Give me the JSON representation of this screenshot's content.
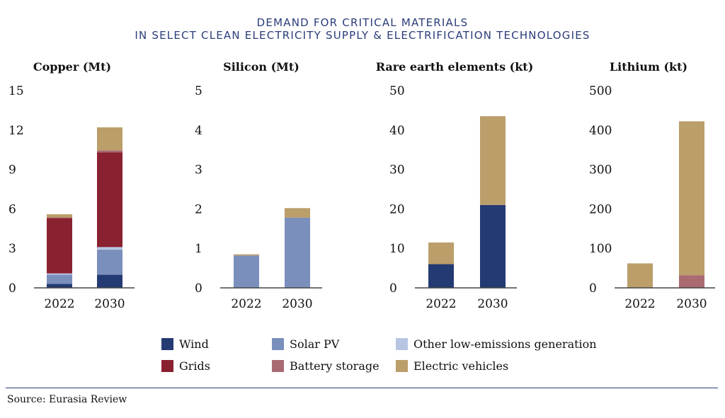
{
  "title": {
    "line1": "DEMAND FOR CRITICAL MATERIALS",
    "line2": "IN SELECT CLEAN ELECTRICITY SUPPLY & ELECTRIFICATION TECHNOLOGIES"
  },
  "colors": {
    "Wind": "#243a73",
    "Solar PV": "#7a8fbc",
    "Other low-emissions generation": "#b8c5e2",
    "Grids": "#8a2131",
    "Battery storage": "#a96a72",
    "Electric vehicles": "#bb9e6a"
  },
  "legend": [
    {
      "label": "Wind",
      "color": "#243a73"
    },
    {
      "label": "Grids",
      "color": "#8a2131"
    },
    {
      "label": "Solar PV",
      "color": "#7a8fbc"
    },
    {
      "label": "Battery storage",
      "color": "#a96a72"
    },
    {
      "label": "Other low-emissions generation",
      "color": "#b8c5e2"
    },
    {
      "label": "Electric vehicles",
      "color": "#bb9e6a"
    }
  ],
  "source": "Source: Eurasia Review",
  "chart_data": [
    {
      "type": "bar",
      "stacked": true,
      "title": "Copper (Mt)",
      "categories": [
        "2022",
        "2030"
      ],
      "ylim": [
        0,
        15
      ],
      "yticks": [
        "0",
        "3",
        "6",
        "9",
        "12",
        "15"
      ],
      "series": [
        {
          "name": "Wind",
          "values": [
            0.3,
            1.0
          ]
        },
        {
          "name": "Solar PV",
          "values": [
            0.7,
            1.9
          ]
        },
        {
          "name": "Other low-emissions generation",
          "values": [
            0.1,
            0.2
          ]
        },
        {
          "name": "Grids",
          "values": [
            4.2,
            7.2
          ]
        },
        {
          "name": "Battery storage",
          "values": [
            0.05,
            0.15
          ]
        },
        {
          "name": "Electric vehicles",
          "values": [
            0.25,
            1.75
          ]
        }
      ]
    },
    {
      "type": "bar",
      "stacked": true,
      "title": "Silicon (Mt)",
      "categories": [
        "2022",
        "2030"
      ],
      "ylim": [
        0,
        5
      ],
      "yticks": [
        "0",
        "1",
        "2",
        "3",
        "4",
        "5"
      ],
      "series": [
        {
          "name": "Solar PV",
          "values": [
            0.82,
            1.78
          ]
        },
        {
          "name": "Electric vehicles",
          "values": [
            0.03,
            0.24
          ]
        }
      ]
    },
    {
      "type": "bar",
      "stacked": true,
      "title": "Rare earth elements (kt)",
      "categories": [
        "2022",
        "2030"
      ],
      "ylim": [
        0,
        50
      ],
      "yticks": [
        "0",
        "10",
        "20",
        "30",
        "40",
        "50"
      ],
      "series": [
        {
          "name": "Wind",
          "values": [
            6,
            21
          ]
        },
        {
          "name": "Electric vehicles",
          "values": [
            5.5,
            22.5
          ]
        }
      ]
    },
    {
      "type": "bar",
      "stacked": true,
      "title": "Lithium (kt)",
      "categories": [
        "2022",
        "2030"
      ],
      "ylim": [
        0,
        500
      ],
      "yticks": [
        "0",
        "100",
        "200",
        "300",
        "400",
        "500"
      ],
      "series": [
        {
          "name": "Battery storage",
          "values": [
            0,
            32
          ]
        },
        {
          "name": "Electric vehicles",
          "values": [
            62,
            390
          ]
        }
      ]
    }
  ]
}
